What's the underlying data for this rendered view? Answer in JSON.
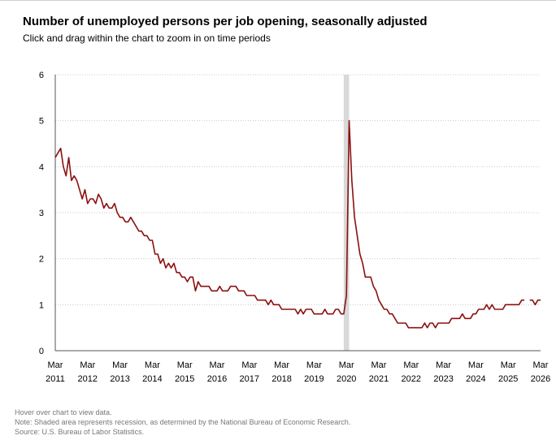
{
  "header": {
    "title": "Number of unemployed persons per job opening, seasonally adjusted",
    "subtitle": "Click and drag within the chart to zoom in on time periods"
  },
  "footer": {
    "hover_note": "Hover over chart to view data.",
    "recession_note": "Note: Shaded area represents recession, as determined by the National Bureau of Economic Research.",
    "source": "Source: U.S. Bureau of Labor Statistics."
  },
  "colors": {
    "series": "#8b1010",
    "recession": "#d9d9d9",
    "grid": "#c8c8c8"
  },
  "chart_data": {
    "type": "line",
    "title": "Number of unemployed persons per job opening, seasonally adjusted",
    "xlabel": "",
    "ylabel": "",
    "ylim": [
      0,
      6
    ],
    "yticks": [
      "0",
      "1",
      "2",
      "3",
      "4",
      "5",
      "6"
    ],
    "xlim": [
      "2011-03",
      "2026-03"
    ],
    "xticks": [
      {
        "month": "Mar",
        "year": "2011",
        "date": "2011-03"
      },
      {
        "month": "Mar",
        "year": "2012",
        "date": "2012-03"
      },
      {
        "month": "Mar",
        "year": "2013",
        "date": "2013-03"
      },
      {
        "month": "Mar",
        "year": "2014",
        "date": "2014-03"
      },
      {
        "month": "Mar",
        "year": "2015",
        "date": "2015-03"
      },
      {
        "month": "Mar",
        "year": "2016",
        "date": "2016-03"
      },
      {
        "month": "Mar",
        "year": "2017",
        "date": "2017-03"
      },
      {
        "month": "Mar",
        "year": "2018",
        "date": "2018-03"
      },
      {
        "month": "Mar",
        "year": "2019",
        "date": "2019-03"
      },
      {
        "month": "Mar",
        "year": "2020",
        "date": "2020-03"
      },
      {
        "month": "Mar",
        "year": "2021",
        "date": "2021-03"
      },
      {
        "month": "Mar",
        "year": "2022",
        "date": "2022-03"
      },
      {
        "month": "Mar",
        "year": "2023",
        "date": "2023-03"
      },
      {
        "month": "Mar",
        "year": "2024",
        "date": "2024-03"
      },
      {
        "month": "Mar",
        "year": "2025",
        "date": "2025-03"
      },
      {
        "month": "Mar",
        "year": "2026",
        "date": "2026-03"
      }
    ],
    "grid": "horizontal dotted",
    "legend": "none",
    "recession": {
      "start": "2020-02",
      "end": "2020-04"
    },
    "series": [
      {
        "segments": [
          {
            "start": "2011-03",
            "values": [
              4.2,
              4.3,
              4.4,
              4.0,
              3.8,
              4.2,
              3.7,
              3.8,
              3.7,
              3.5,
              3.3,
              3.5,
              3.2,
              3.3,
              3.3,
              3.2,
              3.4,
              3.3,
              3.1,
              3.2,
              3.1,
              3.1,
              3.2,
              3.0,
              2.9,
              2.9,
              2.8,
              2.8,
              2.9,
              2.8,
              2.7,
              2.6,
              2.6,
              2.5,
              2.5,
              2.4,
              2.4,
              2.1,
              2.1,
              1.9,
              2.0,
              1.8,
              1.9,
              1.8,
              1.9,
              1.7,
              1.7,
              1.6,
              1.6,
              1.5,
              1.6,
              1.6,
              1.3,
              1.5,
              1.4,
              1.4,
              1.4,
              1.4,
              1.3,
              1.3,
              1.3,
              1.4,
              1.3,
              1.3,
              1.3,
              1.4,
              1.4,
              1.4,
              1.3,
              1.3,
              1.3,
              1.2,
              1.2,
              1.2,
              1.2,
              1.1,
              1.1,
              1.1,
              1.1,
              1.0,
              1.1,
              1.0,
              1.0,
              1.0,
              0.9,
              0.9,
              0.9,
              0.9,
              0.9,
              0.9,
              0.8,
              0.9,
              0.8,
              0.9,
              0.9,
              0.9,
              0.8,
              0.8,
              0.8,
              0.8,
              0.9,
              0.8,
              0.8,
              0.8,
              0.9,
              0.9,
              0.8,
              0.8,
              1.2,
              5.0,
              3.7,
              2.9,
              2.5,
              2.1,
              1.9,
              1.6,
              1.6,
              1.6,
              1.4,
              1.3,
              1.1,
              1.0,
              0.9,
              0.9,
              0.8,
              0.8,
              0.7,
              0.6,
              0.6,
              0.6,
              0.6,
              0.5,
              0.5,
              0.5,
              0.5,
              0.5,
              0.5,
              0.6,
              0.5,
              0.6,
              0.6,
              0.5,
              0.6,
              0.6,
              0.6,
              0.6,
              0.6,
              0.7,
              0.7,
              0.7,
              0.7,
              0.8,
              0.7,
              0.7,
              0.7,
              0.8,
              0.8,
              0.9,
              0.9,
              0.9,
              1.0,
              0.9,
              1.0,
              0.9,
              0.9,
              0.9,
              0.9,
              1.0,
              1.0,
              1.0,
              1.0,
              1.0,
              1.0,
              1.1,
              1.1
            ]
          },
          {
            "start": "2025-11",
            "values": [
              1.1,
              1.1,
              1.0,
              1.1,
              1.1
            ]
          }
        ]
      }
    ]
  }
}
